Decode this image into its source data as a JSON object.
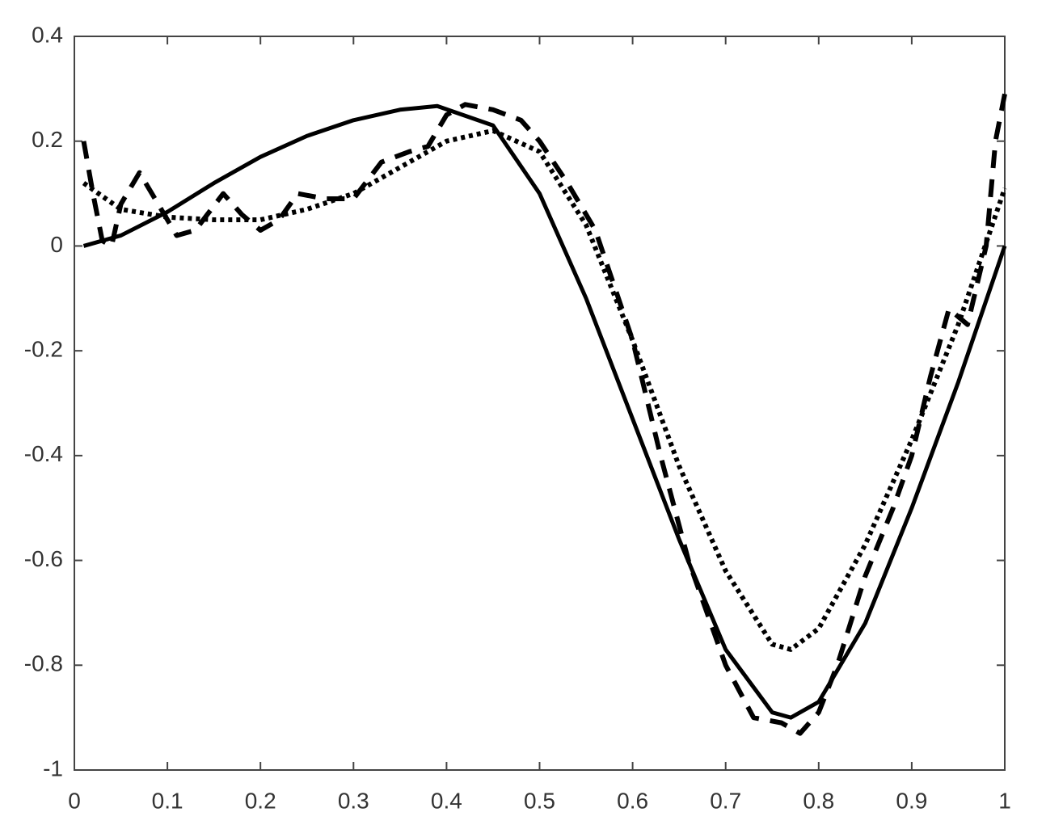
{
  "chart_data": {
    "type": "line",
    "xlim": [
      0,
      1
    ],
    "ylim": [
      -1,
      0.4
    ],
    "xticks": [
      0,
      0.1,
      0.2,
      0.3,
      0.4,
      0.5,
      0.6,
      0.7,
      0.8,
      0.9,
      1
    ],
    "yticks": [
      -1,
      -0.8,
      -0.6,
      -0.4,
      -0.2,
      0,
      0.2,
      0.4
    ],
    "grid": false,
    "series": [
      {
        "color": "#000000",
        "style": "solid",
        "x": [
          0.01,
          0.05,
          0.1,
          0.15,
          0.2,
          0.25,
          0.3,
          0.35,
          0.39,
          0.45,
          0.5,
          0.55,
          0.6,
          0.65,
          0.7,
          0.75,
          0.77,
          0.8,
          0.85,
          0.9,
          0.95,
          1.0
        ],
        "values": [
          0,
          0.02,
          0.065,
          0.12,
          0.17,
          0.21,
          0.24,
          0.26,
          0.267,
          0.23,
          0.1,
          -0.1,
          -0.33,
          -0.56,
          -0.77,
          -0.89,
          -0.9,
          -0.87,
          -0.72,
          -0.5,
          -0.26,
          0
        ]
      },
      {
        "color": "#000000",
        "style": "dashed",
        "x": [
          0.01,
          0.02,
          0.03,
          0.04,
          0.05,
          0.07,
          0.09,
          0.11,
          0.13,
          0.16,
          0.18,
          0.2,
          0.22,
          0.24,
          0.27,
          0.3,
          0.33,
          0.36,
          0.38,
          0.4,
          0.42,
          0.45,
          0.48,
          0.5,
          0.53,
          0.56,
          0.6,
          0.63,
          0.66,
          0.7,
          0.73,
          0.76,
          0.78,
          0.8,
          0.82,
          0.85,
          0.88,
          0.9,
          0.92,
          0.94,
          0.96,
          0.98,
          0.99,
          1.0
        ],
        "values": [
          0.2,
          0.1,
          0.01,
          0.0,
          0.08,
          0.14,
          0.08,
          0.02,
          0.03,
          0.1,
          0.06,
          0.03,
          0.05,
          0.1,
          0.09,
          0.09,
          0.16,
          0.18,
          0.19,
          0.25,
          0.27,
          0.26,
          0.24,
          0.2,
          0.12,
          0.03,
          -0.18,
          -0.4,
          -0.6,
          -0.8,
          -0.9,
          -0.91,
          -0.93,
          -0.89,
          -0.8,
          -0.63,
          -0.5,
          -0.4,
          -0.25,
          -0.12,
          -0.15,
          0.0,
          0.2,
          0.29
        ]
      },
      {
        "color": "#000000",
        "style": "dotted",
        "x": [
          0.01,
          0.05,
          0.1,
          0.15,
          0.2,
          0.25,
          0.3,
          0.35,
          0.4,
          0.45,
          0.5,
          0.55,
          0.6,
          0.65,
          0.7,
          0.75,
          0.77,
          0.8,
          0.85,
          0.9,
          0.95,
          1.0
        ],
        "values": [
          0.12,
          0.07,
          0.055,
          0.05,
          0.05,
          0.07,
          0.1,
          0.15,
          0.2,
          0.22,
          0.18,
          0.04,
          -0.18,
          -0.42,
          -0.62,
          -0.76,
          -0.77,
          -0.73,
          -0.57,
          -0.37,
          -0.15,
          0.11
        ]
      }
    ]
  }
}
